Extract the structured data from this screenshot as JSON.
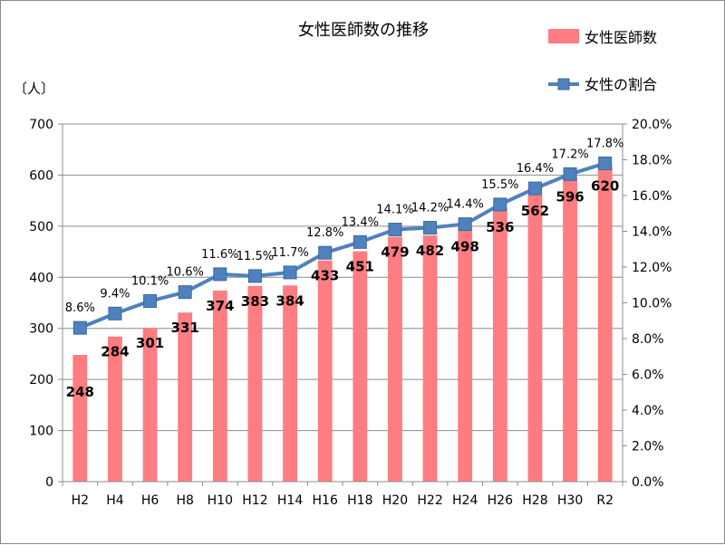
{
  "chart_data": {
    "type": "bar",
    "title": "女性医師数の推移",
    "ylabel": "〔人〕",
    "xlabel": "",
    "categories": [
      "H2",
      "H4",
      "H6",
      "H8",
      "H10",
      "H12",
      "H14",
      "H16",
      "H18",
      "H20",
      "H22",
      "H24",
      "H26",
      "H28",
      "H30",
      "R2"
    ],
    "series": [
      {
        "name": "女性医師数",
        "type": "bar",
        "axis": "left",
        "values": [
          248,
          284,
          301,
          331,
          374,
          383,
          384,
          433,
          451,
          479,
          482,
          498,
          536,
          562,
          596,
          620
        ],
        "labels": [
          "248",
          "284",
          "301",
          "331",
          "374",
          "383",
          "384",
          "433",
          "451",
          "479",
          "482",
          "498",
          "536",
          "562",
          "596",
          "620"
        ],
        "color": "#ff7c80"
      },
      {
        "name": "女性の割合",
        "type": "line",
        "axis": "right",
        "values": [
          8.6,
          9.4,
          10.1,
          10.6,
          11.6,
          11.5,
          11.7,
          12.8,
          13.4,
          14.1,
          14.2,
          14.4,
          15.5,
          16.4,
          17.2,
          17.8
        ],
        "labels": [
          "8.6%",
          "9.4%",
          "10.1%",
          "10.6%",
          "11.6%",
          "11.5%",
          "11.7%",
          "12.8%",
          "13.4%",
          "14.1%",
          "14.2%",
          "14.4%",
          "15.5%",
          "16.4%",
          "17.2%",
          "17.8%"
        ],
        "color": "#4f81bd",
        "marker": "square"
      }
    ],
    "ylim": [
      0,
      700
    ],
    "yticks": [
      "0",
      "100",
      "200",
      "300",
      "400",
      "500",
      "600",
      "700"
    ],
    "y2lim": [
      0,
      20
    ],
    "y2ticks": [
      "0.0%",
      "2.0%",
      "4.0%",
      "6.0%",
      "8.0%",
      "10.0%",
      "12.0%",
      "14.0%",
      "16.0%",
      "18.0%",
      "20.0%"
    ],
    "grid": true,
    "legend_position": "top-right"
  }
}
